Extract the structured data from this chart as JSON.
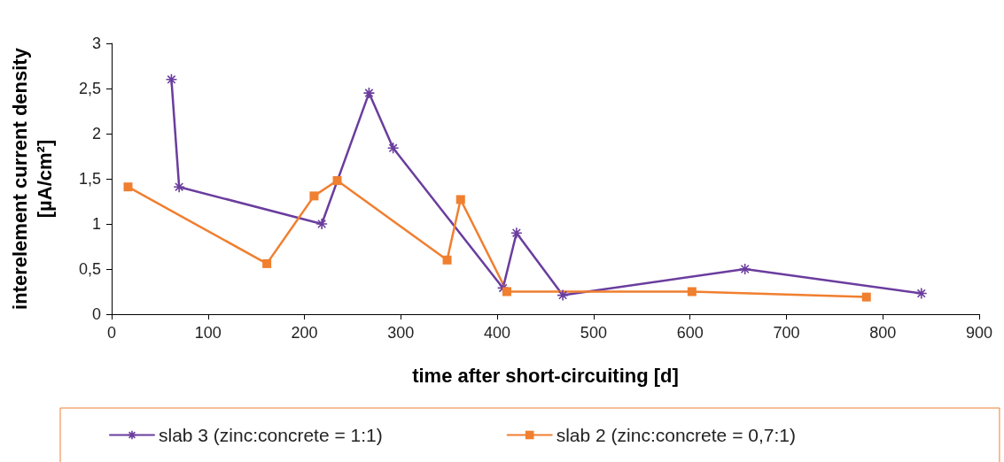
{
  "chart_data": {
    "type": "line",
    "xlabel": "time after short-circuiting [d]",
    "ylabel": "interelement current density\n[µA/cm²]",
    "xlim": [
      0,
      900
    ],
    "xticks": [
      0,
      100,
      200,
      300,
      400,
      500,
      600,
      700,
      800,
      900
    ],
    "ylim": [
      0,
      3
    ],
    "yticks": [
      0,
      {
        "value": 0.5,
        "label": "0,5"
      },
      1,
      {
        "value": 1.5,
        "label": "1,5"
      },
      2,
      {
        "value": 2.5,
        "label": "2,5"
      },
      3
    ],
    "grid": false,
    "legend": "bottom",
    "series": [
      {
        "name": "slab 3 (zinc:concrete = 1:1)",
        "color": "#6a3d9e",
        "marker": "cross",
        "x": [
          62,
          70,
          218,
          267,
          292,
          406,
          420,
          468,
          657,
          840
        ],
        "values": [
          2.6,
          1.41,
          1.0,
          2.45,
          1.84,
          0.29,
          0.9,
          0.21,
          0.5,
          0.23
        ]
      },
      {
        "name": "slab 2 (zinc:concrete = 0,7:1)",
        "color": "#f07f30",
        "marker": "square",
        "x": [
          17,
          161,
          210,
          234,
          348,
          362,
          410,
          602,
          783
        ],
        "values": [
          1.41,
          0.56,
          1.31,
          1.48,
          0.6,
          1.27,
          0.25,
          0.25,
          0.19
        ]
      }
    ]
  }
}
